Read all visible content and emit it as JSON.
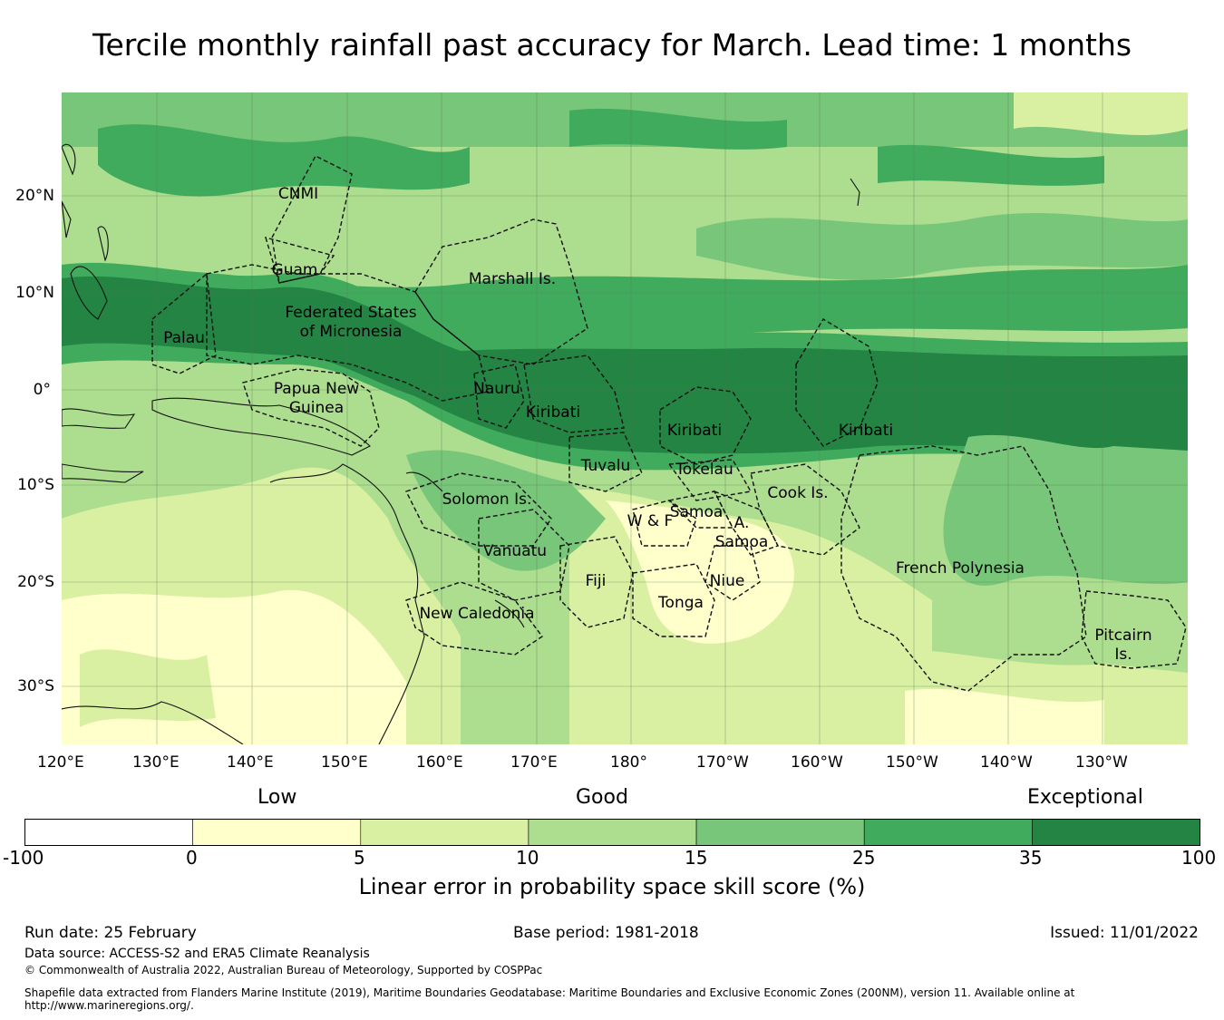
{
  "title": "Tercile monthly rainfall past accuracy for March. Lead time: 1 months",
  "map": {
    "lat_labels": [
      "20°N",
      "10°N",
      "0°",
      "10°S",
      "20°S",
      "30°S"
    ],
    "lon_labels": [
      "120°E",
      "130°E",
      "140°E",
      "150°E",
      "160°E",
      "170°E",
      "180°",
      "170°W",
      "160°W",
      "150°W",
      "140°W",
      "130°W"
    ],
    "regions": [
      "CNMI",
      "Guam",
      "Marshall Is.",
      "Federated States",
      "of Micronesia",
      "Palau",
      "Papua New",
      "Guinea",
      "Nauru",
      "Kiribati",
      "Kiribati",
      "Kiribati",
      "Tuvalu",
      "Tokelau",
      "Cook Is.",
      "Solomon Is.",
      "Samoa",
      "W & F",
      "A.",
      "Samoa",
      "Vanuatu",
      "Fiji",
      "Niue",
      "Tonga",
      "New Caledonia",
      "French Polynesia",
      "Pitcairn",
      "Is."
    ]
  },
  "colorbar": {
    "category_labels": [
      "Low",
      "Good",
      "Exceptional"
    ],
    "tick_labels": [
      "-100",
      "0",
      "5",
      "10",
      "15",
      "25",
      "35",
      "100"
    ],
    "colors": [
      "#ffffff",
      "#ffffcc",
      "#d9f0a3",
      "#addd8e",
      "#78c679",
      "#41ab5d",
      "#238443"
    ],
    "title": "Linear error in probability space skill score (%)"
  },
  "footer": {
    "run_date": "Run date: 25 February",
    "base_period": "Base period: 1981-2018",
    "issued": "Issued: 11/01/2022",
    "data_source": "Data source: ACCESS-S2 and ERA5 Climate Reanalysis",
    "copyright": "© Commonwealth of Australia 2022, Australian Bureau of Meteorology, Supported by COSPPac",
    "shapefile_line1": "Shapefile data extracted from Flanders Marine Institute (2019), Maritime Boundaries Geodatabase: Maritime Boundaries and Exclusive Economic Zones (200NM), version 11. Available online at",
    "shapefile_line2": "http://www.marineregions.org/."
  }
}
